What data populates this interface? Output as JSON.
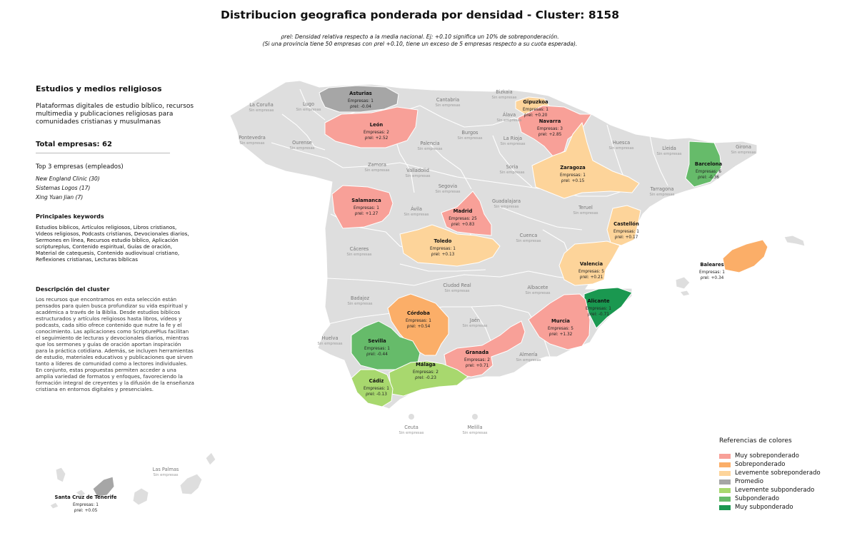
{
  "title": "Distribucion geografica ponderada por densidad - Cluster: 8158",
  "subtitle_line1": "ρrel: Densidad relativa respecto a la media nacional. Ej: +0.10 significa un 10% de sobreponderación.",
  "subtitle_line2": "(Si una provincia tiene 50 empresas con ρrel +0.10, tiene un exceso de 5 empresas respecto a su cuota esperada).",
  "panel": {
    "cluster_title": "Estudios y medios religiosos",
    "cluster_description": "Plataformas digitales de estudio bíblico, recursos multimedia y publicaciones religiosas para comunidades cristianas y musulmanas",
    "total": "Total empresas: 62",
    "top3_title": "Top 3 empresas (empleados)",
    "top3": [
      "New England Clinic (30)",
      "Sistemas Logos (17)",
      "Xing Yuan Jian (7)"
    ],
    "keywords_title": "Principales keywords",
    "keywords": "Estudios bíblicos, Artículos religiosos, Libros cristianos, Videos religiosos, Podcasts cristianos, Devocionales diarios, Sermones en línea, Recursos estudio bíblico, Aplicación scriptureplus, Contenido espiritual, Guías de oración, Material de catequesis, Contenido audiovisual cristiano, Reflexiones cristianas, Lecturas bíblicas",
    "description_title": "Descripción del cluster",
    "description": "Los recursos que encontramos en esta selección están pensados para quien busca profundizar su vida espiritual y académica a través de la Biblia. Desde estudios bíblicos estructurados y artículos religiosos hasta libros, vídeos y podcasts, cada sitio ofrece contenido que nutre la fe y el conocimiento. Las aplicaciones como ScripturePlus facilitan el seguimiento de lecturas y devocionales diarios, mientras que los sermones y guías de oración aportan inspiración para la práctica cotidiana. Además, se incluyen herramientas de estudio, materiales educativos y publicaciones que sirven tanto a líderes de comunidad como a lectores individuales. En conjunto, estas propuestas permiten acceder a una amplia variedad de formatos y enfoques, favoreciendo la formación integral de creyentes y la difusión de la enseñanza cristiana en entornos digitales y presenciales."
  },
  "labels": {
    "empresas_prefix": "Empresas: ",
    "rho_prefix": "ρrel: ",
    "no_companies": "Sin empresas"
  },
  "colors": {
    "muy_sobre": "#f8a098",
    "sobre": "#fbae68",
    "leve_sobre": "#fdd49a",
    "promedio": "#a6a6a6",
    "leve_sub": "#a8d86e",
    "sub": "#66bb6a",
    "muy_sub": "#1a9850",
    "sin_datos": "#dedede"
  },
  "legend": {
    "title": "Referencias de colores",
    "items": [
      {
        "label": "Muy sobreponderado",
        "color": "#f8a098"
      },
      {
        "label": "Sobreponderado",
        "color": "#fbae68"
      },
      {
        "label": "Levemente sobreponderado",
        "color": "#fdd49a"
      },
      {
        "label": "Promedio",
        "color": "#a6a6a6"
      },
      {
        "label": "Levemente subponderado",
        "color": "#a8d86e"
      },
      {
        "label": "Subponderado",
        "color": "#66bb6a"
      },
      {
        "label": "Muy subponderado",
        "color": "#1a9850"
      }
    ]
  },
  "provinces_with_data": [
    {
      "name": "Asturias",
      "empresas": 1,
      "rho": "-0.04",
      "category": "promedio"
    },
    {
      "name": "Gipuzkoa",
      "empresas": 1,
      "rho": "+0.20",
      "category": "leve_sobre"
    },
    {
      "name": "León",
      "empresas": 2,
      "rho": "+2.52",
      "category": "muy_sobre"
    },
    {
      "name": "Navarra",
      "empresas": 3,
      "rho": "+2.85",
      "category": "muy_sobre"
    },
    {
      "name": "Zaragoza",
      "empresas": 1,
      "rho": "+0.15",
      "category": "leve_sobre"
    },
    {
      "name": "Barcelona",
      "empresas": 6,
      "rho": "-0.36",
      "category": "sub"
    },
    {
      "name": "Salamanca",
      "empresas": 1,
      "rho": "+1.27",
      "category": "muy_sobre"
    },
    {
      "name": "Madrid",
      "empresas": 25,
      "rho": "+0.83",
      "category": "muy_sobre"
    },
    {
      "name": "Castellón",
      "empresas": 1,
      "rho": "+0.17",
      "category": "leve_sobre"
    },
    {
      "name": "Toledo",
      "empresas": 1,
      "rho": "+0.13",
      "category": "leve_sobre"
    },
    {
      "name": "Baleares",
      "empresas": 1,
      "rho": "+0.34",
      "category": "sobre"
    },
    {
      "name": "Valencia",
      "empresas": 5,
      "rho": "+0.21",
      "category": "leve_sobre"
    },
    {
      "name": "Alicante",
      "empresas": 1,
      "rho": "-0.71",
      "category": "muy_sub"
    },
    {
      "name": "Córdoba",
      "empresas": 1,
      "rho": "+0.54",
      "category": "sobre"
    },
    {
      "name": "Murcia",
      "empresas": 5,
      "rho": "+1.32",
      "category": "muy_sobre"
    },
    {
      "name": "Sevilla",
      "empresas": 1,
      "rho": "-0.44",
      "category": "sub"
    },
    {
      "name": "Granada",
      "empresas": 2,
      "rho": "+0.71",
      "category": "muy_sobre"
    },
    {
      "name": "Málaga",
      "empresas": 2,
      "rho": "-0.23",
      "category": "leve_sub"
    },
    {
      "name": "Cádiz",
      "empresas": 1,
      "rho": "-0.13",
      "category": "leve_sub"
    },
    {
      "name": "Santa Cruz de Tenerife",
      "empresas": 1,
      "rho": "+0.05",
      "category": "promedio"
    }
  ],
  "provinces_without_data": [
    "La Coruña",
    "Lugo",
    "Cantabria",
    "Bizkaia",
    "Álava",
    "Pontevedra",
    "Ourense",
    "Palencia",
    "Burgos",
    "La Rioja",
    "Huesca",
    "Lleida",
    "Girona",
    "Zamora",
    "Valladolid",
    "Soria",
    "Tarragona",
    "Segovia",
    "Guadalajara",
    "Ávila",
    "Teruel",
    "Cuenca",
    "Cáceres",
    "Ciudad Real",
    "Albacete",
    "Badajoz",
    "Jaén",
    "Huelva",
    "Almería",
    "Ceuta",
    "Melilla",
    "Las Palmas"
  ]
}
